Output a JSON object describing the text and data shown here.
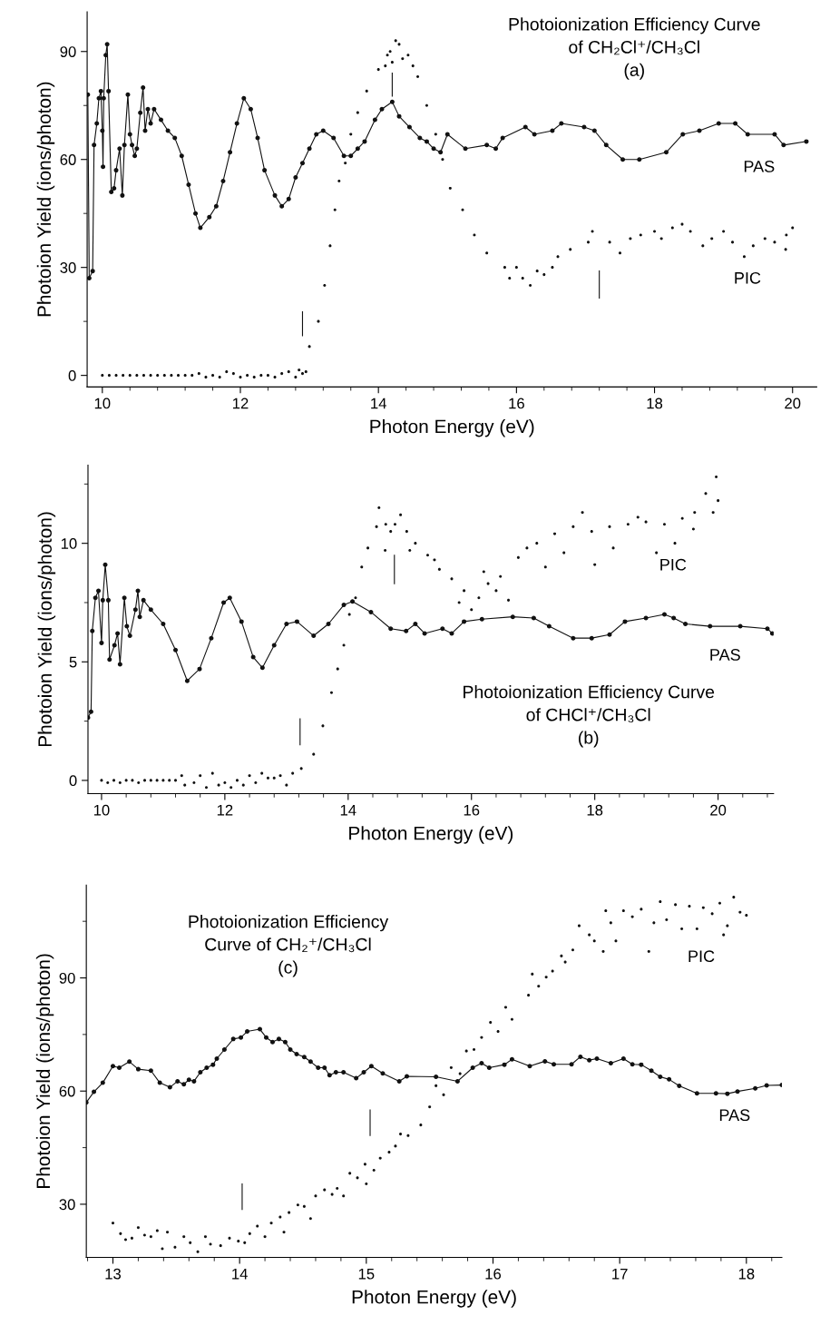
{
  "chart_data": [
    {
      "type": "scatter",
      "title": "Photoionization Efficiency Curve\nof CH₂Cl⁺/CH₃Cl\n(a)",
      "xlabel": "Photon Energy (eV)",
      "ylabel": "Photoion Yield (ions/photon)",
      "xlim": [
        9.78,
        20.35
      ],
      "ylim": [
        -3.2,
        101
      ],
      "xticks": [
        10,
        12,
        14,
        16,
        18,
        20,
        {
          "value": 10.4,
          "label": null
        },
        {
          "value": 10.8,
          "label": null
        },
        {
          "value": 11.2,
          "label": null
        },
        {
          "value": 11.6,
          "label": null
        },
        {
          "value": 12.4,
          "label": null
        },
        {
          "value": 12.8,
          "label": null
        },
        {
          "value": 13.2,
          "label": null
        },
        {
          "value": 13.6,
          "label": null
        },
        {
          "value": 14.4,
          "label": null
        },
        {
          "value": 14.8,
          "label": null
        },
        {
          "value": 15.2,
          "label": null
        },
        {
          "value": 15.6,
          "label": null
        },
        {
          "value": 16.4,
          "label": null
        },
        {
          "value": 16.8,
          "label": null
        },
        {
          "value": 17.2,
          "label": null
        },
        {
          "value": 17.6,
          "label": null
        },
        {
          "value": 18.4,
          "label": null
        },
        {
          "value": 18.8,
          "label": null
        },
        {
          "value": 19.2,
          "label": null
        },
        {
          "value": 19.6,
          "label": null
        }
      ],
      "yticks": [
        0,
        30,
        60,
        90,
        {
          "value": 15,
          "label": null
        },
        {
          "value": 45,
          "label": null
        },
        {
          "value": 75,
          "label": null
        }
      ],
      "grid": false,
      "legend": false,
      "series": [
        {
          "name": "PAS",
          "type": "line",
          "color": "#111111",
          "marker": "circle",
          "line_style": "solid",
          "x": [
            9.79,
            9.81,
            9.86,
            9.88,
            9.92,
            9.95,
            9.98,
            10.0,
            10.01,
            10.02,
            10.05,
            10.07,
            10.09,
            10.13,
            10.17,
            10.2,
            10.25,
            10.29,
            10.32,
            10.37,
            10.4,
            10.43,
            10.47,
            10.5,
            10.55,
            10.59,
            10.62,
            10.66,
            10.7,
            10.75,
            10.85,
            10.95,
            11.05,
            11.15,
            11.25,
            11.35,
            11.42,
            11.55,
            11.65,
            11.75,
            11.85,
            11.95,
            12.05,
            12.15,
            12.25,
            12.35,
            12.5,
            12.6,
            12.7,
            12.8,
            12.9,
            13.0,
            13.1,
            13.2,
            13.35,
            13.5,
            13.6,
            13.7,
            13.8,
            13.95,
            14.05,
            14.2,
            14.3,
            14.45,
            14.6,
            14.7,
            14.8,
            14.9,
            15.0,
            15.26,
            15.57,
            15.7,
            15.8,
            16.13,
            16.26,
            16.52,
            16.65,
            16.98,
            17.13,
            17.3,
            17.54,
            17.78,
            18.17,
            18.41,
            18.65,
            18.93,
            19.17,
            19.35,
            19.74,
            19.87,
            20.2
          ],
          "values": [
            78,
            27,
            29,
            64,
            70,
            77,
            79,
            68,
            58,
            77,
            89,
            92,
            79,
            51,
            52,
            57,
            63,
            50,
            64,
            78,
            67,
            64,
            61,
            63,
            73,
            80,
            68,
            74,
            70,
            74,
            71,
            68,
            66,
            61,
            53,
            45,
            41,
            44,
            47,
            54,
            62,
            70,
            77,
            74,
            66,
            57,
            50,
            47,
            49,
            55,
            59,
            63,
            67,
            68,
            66,
            61,
            61,
            63,
            65,
            71,
            74,
            76,
            72,
            69,
            66,
            65,
            63,
            62,
            67,
            63,
            64,
            63,
            66,
            69,
            67,
            68,
            70,
            69,
            68,
            64,
            60,
            60,
            62,
            67,
            68,
            70,
            70,
            67,
            67,
            64,
            65
          ]
        },
        {
          "name": "PIC",
          "color": "#111111",
          "marker": "circle",
          "x": [
            10.0,
            10.1,
            10.2,
            10.3,
            10.4,
            10.5,
            10.6,
            10.7,
            10.8,
            10.9,
            11.0,
            11.1,
            11.2,
            11.3,
            11.4,
            11.5,
            11.6,
            11.7,
            11.8,
            11.9,
            12.0,
            12.1,
            12.2,
            12.3,
            12.4,
            12.5,
            12.6,
            12.7,
            12.8,
            12.85,
            12.9,
            12.95,
            13.0,
            13.13,
            13.22,
            13.3,
            13.37,
            13.43,
            13.52,
            13.6,
            13.7,
            13.83,
            14.0,
            14.1,
            14.13,
            14.17,
            14.2,
            14.25,
            14.3,
            14.35,
            14.43,
            14.5,
            14.57,
            14.7,
            14.83,
            14.93,
            15.04,
            15.22,
            15.39,
            15.57,
            15.83,
            15.9,
            16.0,
            16.09,
            16.2,
            16.3,
            16.4,
            16.52,
            16.6,
            16.78,
            17.04,
            17.1,
            17.35,
            17.5,
            17.65,
            17.8,
            18.0,
            18.1,
            18.26,
            18.4,
            18.52,
            18.7,
            18.83,
            19.0,
            19.13,
            19.3,
            19.43,
            19.6,
            19.74,
            19.9,
            19.91,
            20.0
          ],
          "values": [
            0,
            0,
            0,
            0,
            0,
            0,
            0,
            0,
            0,
            0,
            0,
            0,
            0,
            0,
            0.5,
            -0.5,
            0,
            -0.5,
            1,
            0.5,
            -0.5,
            0,
            -0.5,
            0,
            0,
            -0.5,
            0.5,
            1,
            -0.5,
            1.5,
            0.5,
            1,
            8,
            15,
            25,
            36,
            46,
            54,
            59,
            67,
            73,
            79,
            85,
            86,
            89,
            90,
            87,
            93,
            92,
            88,
            89,
            86,
            83,
            75,
            67,
            60,
            52,
            46,
            39,
            34,
            30,
            27,
            30,
            27,
            25,
            29,
            28,
            30,
            33,
            35,
            37,
            40,
            37,
            34,
            38,
            39,
            40,
            38,
            41,
            42,
            40,
            36,
            38,
            40,
            37,
            33,
            36,
            38,
            37,
            35,
            39,
            41
          ]
        },
        {
          "type": "line",
          "color": "#111111",
          "x": [
            12.9,
            12.9
          ],
          "values": [
            11,
            17.7
          ]
        },
        {
          "type": "line",
          "color": "#111111",
          "x": [
            14.2,
            14.2
          ],
          "values": [
            77.6,
            84
          ]
        },
        {
          "type": "line",
          "color": "#111111",
          "x": [
            17.2,
            17.2
          ],
          "values": [
            21.5,
            29
          ]
        }
      ]
    },
    {
      "type": "scatter",
      "title": "Photoionization Efficiency Curve\nof CHCl⁺/CH₃Cl\n(b)",
      "xlabel": "Photon Energy (eV)",
      "ylabel": "Photoion Yield (ions/photon)",
      "xlim": [
        9.78,
        20.9
      ],
      "ylim": [
        -0.56,
        13.3
      ],
      "xticks": [
        10,
        12,
        14,
        16,
        18,
        20,
        {
          "value": 10.4,
          "label": null
        },
        {
          "value": 10.8,
          "label": null
        },
        {
          "value": 11.2,
          "label": null
        },
        {
          "value": 11.6,
          "label": null
        },
        {
          "value": 12.4,
          "label": null
        },
        {
          "value": 12.8,
          "label": null
        },
        {
          "value": 13.2,
          "label": null
        },
        {
          "value": 13.6,
          "label": null
        },
        {
          "value": 14.4,
          "label": null
        },
        {
          "value": 14.8,
          "label": null
        },
        {
          "value": 15.2,
          "label": null
        },
        {
          "value": 15.6,
          "label": null
        },
        {
          "value": 16.4,
          "label": null
        },
        {
          "value": 16.8,
          "label": null
        },
        {
          "value": 17.2,
          "label": null
        },
        {
          "value": 17.6,
          "label": null
        },
        {
          "value": 18.4,
          "label": null
        },
        {
          "value": 18.8,
          "label": null
        },
        {
          "value": 19.2,
          "label": null
        },
        {
          "value": 19.6,
          "label": null
        },
        {
          "value": 20.4,
          "label": null
        },
        {
          "value": 20.8,
          "label": null
        }
      ],
      "yticks": [
        0,
        5,
        10,
        {
          "value": 2.5,
          "label": null
        },
        {
          "value": 7.5,
          "label": null
        },
        {
          "value": 12.5,
          "label": null
        }
      ],
      "grid": false,
      "legend": false,
      "series": [
        {
          "name": "PAS",
          "type": "line",
          "color": "#111111",
          "marker": "circle",
          "line_style": "solid",
          "x": [
            9.78,
            9.83,
            9.85,
            9.9,
            9.95,
            10.0,
            10.02,
            10.06,
            10.11,
            10.13,
            10.21,
            10.26,
            10.3,
            10.37,
            10.41,
            10.46,
            10.55,
            10.59,
            10.62,
            10.68,
            10.8,
            11.0,
            11.2,
            11.39,
            11.59,
            11.78,
            11.98,
            12.08,
            12.27,
            12.46,
            12.61,
            12.8,
            13.0,
            13.17,
            13.44,
            13.68,
            13.93,
            14.07,
            14.37,
            14.69,
            14.94,
            15.09,
            15.24,
            15.53,
            15.68,
            15.88,
            16.17,
            16.67,
            17.01,
            17.26,
            17.65,
            17.95,
            18.24,
            18.49,
            18.83,
            19.13,
            19.28,
            19.47,
            19.87,
            20.36,
            20.8,
            20.88
          ],
          "values": [
            2.65,
            2.9,
            6.3,
            7.7,
            8.0,
            5.8,
            7.6,
            9.1,
            7.6,
            5.1,
            5.7,
            6.2,
            4.9,
            7.7,
            6.5,
            6.1,
            7.2,
            8.0,
            6.9,
            7.6,
            7.2,
            6.6,
            5.5,
            4.2,
            4.7,
            6.0,
            7.5,
            7.7,
            6.7,
            5.2,
            4.75,
            5.7,
            6.6,
            6.7,
            6.1,
            6.6,
            7.4,
            7.55,
            7.1,
            6.4,
            6.3,
            6.6,
            6.2,
            6.4,
            6.2,
            6.7,
            6.8,
            6.9,
            6.85,
            6.5,
            6.0,
            6.0,
            6.15,
            6.7,
            6.85,
            7.0,
            6.85,
            6.6,
            6.5,
            6.5,
            6.4,
            6.2
          ]
        },
        {
          "name": "PIC",
          "color": "#111111",
          "marker": "circle",
          "x": [
            10.0,
            10.1,
            10.2,
            10.3,
            10.4,
            10.5,
            10.6,
            10.7,
            10.8,
            10.9,
            11.0,
            11.1,
            11.2,
            11.3,
            11.35,
            11.5,
            11.6,
            11.7,
            11.8,
            11.9,
            12.0,
            12.1,
            12.2,
            12.3,
            12.4,
            12.5,
            12.6,
            12.7,
            12.8,
            12.9,
            13.0,
            13.1,
            13.24,
            13.44,
            13.59,
            13.73,
            13.83,
            13.93,
            14.02,
            14.12,
            14.22,
            14.32,
            14.46,
            14.5,
            14.6,
            14.61,
            14.69,
            14.76,
            14.85,
            14.95,
            15.0,
            15.09,
            15.29,
            15.4,
            15.48,
            15.68,
            15.8,
            15.88,
            16.0,
            16.12,
            16.2,
            16.27,
            16.4,
            16.47,
            16.6,
            16.76,
            16.9,
            17.06,
            17.2,
            17.35,
            17.5,
            17.65,
            17.8,
            17.95,
            18.0,
            18.24,
            18.3,
            18.54,
            18.7,
            18.83,
            19.0,
            19.13,
            19.3,
            19.42,
            19.6,
            19.62,
            19.8,
            19.92,
            19.97,
            20.0
          ],
          "values": [
            0,
            -0.1,
            0,
            -0.1,
            0,
            0,
            -0.1,
            0,
            0,
            0,
            0,
            0,
            0,
            0.2,
            -0.2,
            -0.1,
            0.2,
            -0.3,
            0.3,
            -0.2,
            -0.1,
            -0.3,
            0,
            -0.2,
            0.2,
            -0.1,
            0.3,
            0.1,
            0.1,
            0.2,
            -0.2,
            0.3,
            0.5,
            1.1,
            2.3,
            3.7,
            4.7,
            5.7,
            7.0,
            7.7,
            9.0,
            9.8,
            10.7,
            11.5,
            9.7,
            10.8,
            10.5,
            10.8,
            11.2,
            10.5,
            9.7,
            10.0,
            9.5,
            9.3,
            8.9,
            8.5,
            7.5,
            8.0,
            7.2,
            7.7,
            8.8,
            8.3,
            8.0,
            8.6,
            7.6,
            9.4,
            9.8,
            10.0,
            9.0,
            10.4,
            9.6,
            10.7,
            11.3,
            10.5,
            9.1,
            10.7,
            9.8,
            10.8,
            11.1,
            10.9,
            9.6,
            10.8,
            10.0,
            11.05,
            10.6,
            11.3,
            12.1,
            11.3,
            12.8,
            11.8
          ]
        },
        {
          "type": "line",
          "color": "#111111",
          "x": [
            13.22,
            13.22
          ],
          "values": [
            1.5,
            2.6
          ]
        },
        {
          "type": "line",
          "color": "#111111",
          "x": [
            14.75,
            14.75
          ],
          "values": [
            8.3,
            9.5
          ]
        }
      ]
    },
    {
      "type": "scatter",
      "title": "Photoionization Efficiency\nCurve of CH₂⁺/CH₃Cl\n(c)",
      "xlabel": "Photon Energy (eV)",
      "ylabel": "Photoion Yield (ions/photon)",
      "xlim": [
        12.79,
        18.28
      ],
      "ylim": [
        15.9,
        114.6
      ],
      "xticks": [
        13,
        14,
        15,
        16,
        17,
        18,
        {
          "value": 12.8,
          "label": null
        },
        {
          "value": 13.2,
          "label": null
        },
        {
          "value": 13.4,
          "label": null
        },
        {
          "value": 13.6,
          "label": null
        },
        {
          "value": 13.8,
          "label": null
        },
        {
          "value": 14.2,
          "label": null
        },
        {
          "value": 14.4,
          "label": null
        },
        {
          "value": 14.6,
          "label": null
        },
        {
          "value": 14.8,
          "label": null
        },
        {
          "value": 15.2,
          "label": null
        },
        {
          "value": 15.4,
          "label": null
        },
        {
          "value": 15.6,
          "label": null
        },
        {
          "value": 15.8,
          "label": null
        },
        {
          "value": 16.2,
          "label": null
        },
        {
          "value": 16.4,
          "label": null
        },
        {
          "value": 16.6,
          "label": null
        },
        {
          "value": 16.8,
          "label": null
        },
        {
          "value": 17.2,
          "label": null
        },
        {
          "value": 17.4,
          "label": null
        },
        {
          "value": 17.6,
          "label": null
        },
        {
          "value": 17.8,
          "label": null
        },
        {
          "value": 18.2,
          "label": null
        }
      ],
      "yticks": [
        30,
        60,
        90,
        {
          "value": 45,
          "label": null
        },
        {
          "value": 75,
          "label": null
        },
        {
          "value": 105,
          "label": null
        }
      ],
      "grid": false,
      "legend": false,
      "series": [
        {
          "name": "PAS",
          "type": "line",
          "color": "#111111",
          "marker": "circle",
          "line_style": "solid",
          "x": [
            12.79,
            12.85,
            12.92,
            13.0,
            13.05,
            13.13,
            13.2,
            13.3,
            13.37,
            13.45,
            13.51,
            13.56,
            13.6,
            13.64,
            13.69,
            13.74,
            13.79,
            13.82,
            13.88,
            13.95,
            14.01,
            14.06,
            14.16,
            14.21,
            14.26,
            14.31,
            14.36,
            14.4,
            14.45,
            14.51,
            14.56,
            14.62,
            14.67,
            14.71,
            14.76,
            14.82,
            14.92,
            14.98,
            15.04,
            15.13,
            15.26,
            15.32,
            15.55,
            15.72,
            15.84,
            15.91,
            15.97,
            16.09,
            16.15,
            16.29,
            16.41,
            16.48,
            16.62,
            16.69,
            16.76,
            16.82,
            16.93,
            17.03,
            17.1,
            17.17,
            17.25,
            17.32,
            17.39,
            17.47,
            17.61,
            17.76,
            17.85,
            17.93,
            18.07,
            18.16,
            18.28
          ],
          "values": [
            57,
            59.8,
            62.2,
            66.6,
            66.2,
            67.8,
            65.8,
            65.4,
            62.2,
            61,
            62.6,
            61.8,
            63,
            62.6,
            65,
            66.2,
            67,
            68.6,
            71,
            73.8,
            74.2,
            75.8,
            76.4,
            74.2,
            73,
            73.8,
            73,
            71,
            69.8,
            69,
            67.8,
            66.2,
            66.2,
            64.2,
            65,
            65,
            63.4,
            65,
            66.6,
            64.7,
            62.6,
            63.9,
            63.8,
            62.6,
            66.2,
            67.4,
            66.2,
            67,
            68.4,
            66.6,
            67.9,
            67.1,
            67.1,
            69.1,
            68.2,
            68.6,
            67.4,
            68.6,
            67.1,
            67,
            65.4,
            63.8,
            63.1,
            61.4,
            59.4,
            59.4,
            59.3,
            59.9,
            60.7,
            61.5,
            61.6
          ]
        },
        {
          "name": "PIC",
          "color": "#111111",
          "marker": "circle",
          "x": [
            13.0,
            13.06,
            13.1,
            13.15,
            13.2,
            13.25,
            13.3,
            13.35,
            13.39,
            13.43,
            13.49,
            13.56,
            13.61,
            13.67,
            13.73,
            13.77,
            13.85,
            13.92,
            13.99,
            14.04,
            14.08,
            14.14,
            14.2,
            14.25,
            14.32,
            14.35,
            14.39,
            14.46,
            14.51,
            14.56,
            14.6,
            14.67,
            14.73,
            14.77,
            14.82,
            14.87,
            14.93,
            14.99,
            15.0,
            15.06,
            15.11,
            15.18,
            15.23,
            15.27,
            15.33,
            15.43,
            15.5,
            15.55,
            15.61,
            15.67,
            15.74,
            15.79,
            15.85,
            15.91,
            15.98,
            16.04,
            16.1,
            16.15,
            16.28,
            16.31,
            16.36,
            16.42,
            16.47,
            16.54,
            16.57,
            16.63,
            16.68,
            16.76,
            16.8,
            16.87,
            16.89,
            16.93,
            16.97,
            17.03,
            17.1,
            17.17,
            17.23,
            17.27,
            17.32,
            17.37,
            17.44,
            17.49,
            17.55,
            17.61,
            17.66,
            17.73,
            17.79,
            17.82,
            17.85,
            17.9,
            17.95,
            18.0
          ],
          "values": [
            25,
            22.2,
            20.6,
            21,
            23.8,
            21.8,
            21.4,
            23,
            18.2,
            22.6,
            18.6,
            21.4,
            19.8,
            17.4,
            21.4,
            19.4,
            19,
            21,
            20.2,
            19.8,
            22.2,
            24.2,
            21.4,
            25,
            26.6,
            22.6,
            27.8,
            29.8,
            29.4,
            26.2,
            32.2,
            33.8,
            32.6,
            34.2,
            32.2,
            38.2,
            37,
            40.6,
            35.4,
            39,
            42.2,
            43.8,
            45.4,
            48.6,
            48.2,
            51,
            55.8,
            61.4,
            59,
            66.2,
            64.6,
            70.6,
            71,
            74.2,
            78.2,
            75.8,
            82.2,
            79,
            85.4,
            91,
            87.8,
            90.2,
            91.8,
            95.8,
            94.2,
            97.4,
            103.8,
            101.4,
            99.8,
            97,
            107.8,
            104.6,
            99.8,
            107.8,
            106.2,
            108.2,
            97,
            104.6,
            110.2,
            105.4,
            109.4,
            103,
            109,
            103,
            108.6,
            107,
            109.8,
            101.4,
            103.8,
            111.4,
            107.4,
            106.6
          ]
        },
        {
          "type": "line",
          "color": "#111111",
          "x": [
            14.02,
            14.02
          ],
          "values": [
            28.6,
            35.4
          ]
        },
        {
          "type": "line",
          "color": "#111111",
          "x": [
            15.03,
            15.03
          ],
          "values": [
            48.2,
            55
          ]
        }
      ]
    }
  ]
}
